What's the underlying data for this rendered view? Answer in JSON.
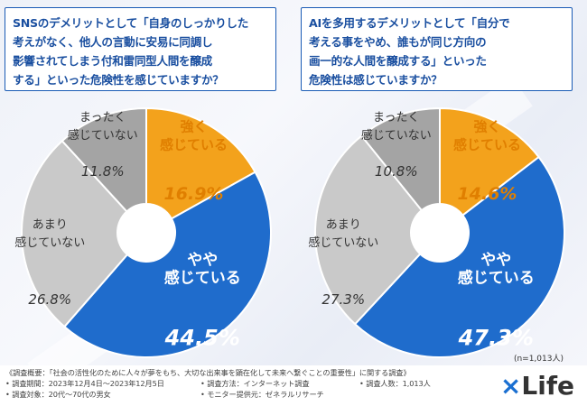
{
  "colors": {
    "strong": "#f3a21c",
    "some": "#1f6ccc",
    "notmuch": "#c9c9c9",
    "notatall": "#a4a4a4",
    "title": "#1a4fa0"
  },
  "left": {
    "question_lines": [
      "SNSのデメリットとして「自身のしっかりした",
      "考えがなく、他人の言動に安易に同調し",
      "影響されてしまう付和雷同型人間を醸成",
      "する」といった危険性を感じていますか？"
    ]
  },
  "right": {
    "question_lines": [
      "AIを多用するデメリットとして「自分で",
      "考える事をやめ、誰もが同じ方向の",
      "画一的な人間を醸成する」といった",
      "危険性は感じていますか？"
    ]
  },
  "chart_data": [
    {
      "type": "pie",
      "title": "SNSのデメリットとして「自身のしっかりした考えがなく、他人の言動に安易に同調し影響されてしまう付和雷同型人間を醸成する」といった危険性を感じていますか？",
      "categories": [
        "強く感じている",
        "やや感じている",
        "あまり感じていない",
        "まったく感じていない"
      ],
      "label_lines": [
        [
          "強く",
          "感じている"
        ],
        [
          "やや",
          "感じている"
        ],
        [
          "あまり",
          "感じていない"
        ],
        [
          "まったく",
          "感じていない"
        ]
      ],
      "values": [
        16.9,
        44.5,
        26.8,
        11.8
      ],
      "value_labels": [
        "16.9%",
        "44.5%",
        "26.8%",
        "11.8%"
      ]
    },
    {
      "type": "pie",
      "title": "AIを多用するデメリットとして「自分で考える事をやめ、誰もが同じ方向の画一的な人間を醸成する」といった危険性は感じていますか？",
      "categories": [
        "強く感じている",
        "やや感じている",
        "あまり感じていない",
        "まったく感じていない"
      ],
      "label_lines": [
        [
          "強く",
          "感じている"
        ],
        [
          "やや",
          "感じている"
        ],
        [
          "あまり",
          "感じていない"
        ],
        [
          "まったく",
          "感じていない"
        ]
      ],
      "values": [
        14.6,
        47.3,
        27.3,
        10.8
      ],
      "value_labels": [
        "14.6%",
        "47.3%",
        "27.3%",
        "10.8%"
      ]
    }
  ],
  "sample_size": "(n=1,013人)",
  "footnotes": {
    "overview": "《調査概要：「社会の活性化のために人々が夢をもち、大切な出来事を顕在化して未来へ繋ぐことの重要性」に関する調査》",
    "period": "• 調査期間：2023年12月4日〜2023年12月5日",
    "method": "• 調査方法：インターネット調査",
    "count": "• 調査人数：1,013人",
    "target": "• 調査対象：20代〜70代の男女",
    "provider": "• モニター提供元：ゼネラルリサーチ"
  },
  "logo": {
    "mark": "×",
    "text": "Life"
  }
}
